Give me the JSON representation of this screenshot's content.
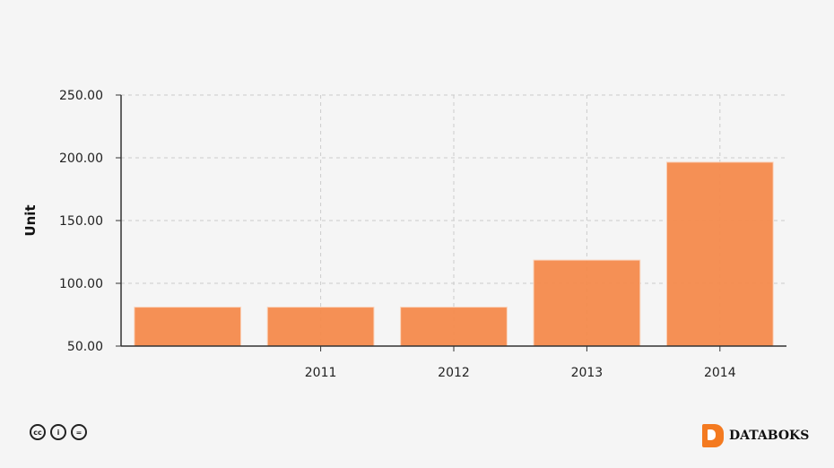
{
  "chart_data": {
    "type": "bar",
    "categories": [
      "",
      "2011",
      "2012",
      "2013",
      "2014"
    ],
    "values": [
      81,
      81,
      81,
      118.5,
      196.5
    ],
    "title": "",
    "xlabel": "",
    "ylabel": "Unit",
    "ylim": [
      50,
      250
    ],
    "yticks": [
      50,
      100,
      150,
      200,
      250
    ],
    "ytick_labels": [
      "50.00",
      "100.00",
      "150.00",
      "200.00",
      "250.00"
    ],
    "grid": true,
    "bar_color": "#f48a4c"
  },
  "footer": {
    "license_icons": [
      "cc-icon",
      "attribution-icon",
      "no-derivatives-icon"
    ],
    "cc_text": "cc",
    "nd_text": "=",
    "attr_text": "i",
    "brand": "DATABOKS",
    "brand_color": "#f47a20"
  }
}
